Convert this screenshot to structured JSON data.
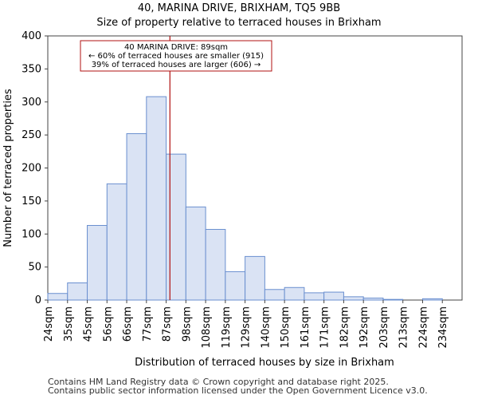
{
  "chart_data": {
    "type": "bar",
    "title": "40, MARINA DRIVE, BRIXHAM, TQ5 9BB",
    "subtitle": "Size of property relative to terraced houses in Brixham",
    "xlabel": "Distribution of terraced houses by size in Brixham",
    "ylabel": "Number of terraced properties",
    "categories": [
      "24sqm",
      "35sqm",
      "45sqm",
      "56sqm",
      "66sqm",
      "77sqm",
      "87sqm",
      "98sqm",
      "108sqm",
      "119sqm",
      "129sqm",
      "140sqm",
      "150sqm",
      "161sqm",
      "171sqm",
      "182sqm",
      "192sqm",
      "203sqm",
      "213sqm",
      "224sqm",
      "234sqm"
    ],
    "values": [
      10,
      26,
      113,
      176,
      252,
      308,
      221,
      141,
      107,
      43,
      66,
      16,
      19,
      11,
      12,
      5,
      3,
      1,
      0,
      2,
      0
    ],
    "ylim": [
      0,
      400
    ],
    "yticks": [
      0,
      50,
      100,
      150,
      200,
      250,
      300,
      350,
      400
    ],
    "marker": {
      "value_sqm": 89,
      "line1": "40 MARINA DRIVE: 89sqm",
      "line2": "← 60% of terraced houses are smaller (915)",
      "line3": "39% of terraced houses are larger (606) →"
    },
    "colors": {
      "bar_fill": "#dae3f4",
      "bar_edge": "#6a8fcf",
      "marker": "#b01010"
    }
  },
  "footer": {
    "line1": "Contains HM Land Registry data © Crown copyright and database right 2025.",
    "line2": "Contains public sector information licensed under the Open Government Licence v3.0."
  }
}
